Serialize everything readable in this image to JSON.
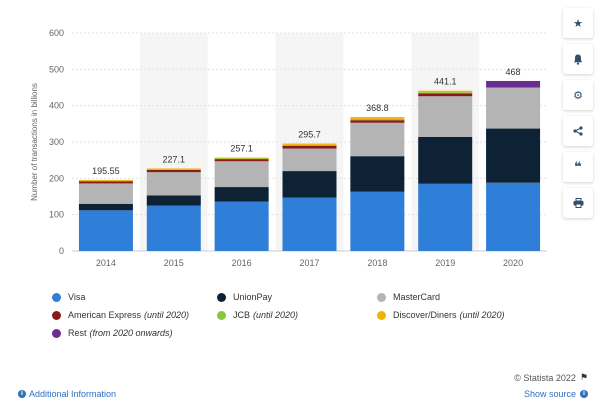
{
  "chart_data": {
    "type": "bar",
    "stacked": true,
    "ylabel": "Number of transactions in billions",
    "ylim": [
      0,
      600
    ],
    "yticks": [
      0,
      100,
      200,
      300,
      400,
      500,
      600
    ],
    "categories": [
      "2014",
      "2015",
      "2016",
      "2017",
      "2018",
      "2019",
      "2020"
    ],
    "totals": [
      "195.55",
      "227.1",
      "257.1",
      "295.7",
      "368.8",
      "441.1",
      "468"
    ],
    "grid": true,
    "legend_position": "bottom",
    "series": [
      {
        "name": "Visa",
        "color": "#2f7ed8",
        "values": [
          112,
          125,
          136,
          147,
          163,
          185,
          188
        ]
      },
      {
        "name": "UnionPay",
        "color": "#0e2235",
        "values": [
          18,
          28,
          40,
          73,
          98,
          129,
          149
        ]
      },
      {
        "name": "MasterCard",
        "color": "#b4b4b4",
        "values": [
          56,
          64,
          71,
          62,
          92,
          112,
          113
        ]
      },
      {
        "name": "American Express",
        "note": "(until 2020)",
        "color": "#8b1a1a",
        "values": [
          6,
          6,
          6,
          7,
          7,
          8,
          0
        ]
      },
      {
        "name": "JCB",
        "note": "(until 2020)",
        "color": "#8cc63f",
        "values": [
          1.5,
          2,
          2,
          3,
          3.5,
          3,
          0
        ]
      },
      {
        "name": "Discover/Diners",
        "note": "(until 2020)",
        "color": "#f0b400",
        "values": [
          2.05,
          2.1,
          2.1,
          3.7,
          5.3,
          4.1,
          0
        ]
      },
      {
        "name": "Rest",
        "note": "(from 2020 onwards)",
        "color": "#6c2d91",
        "values": [
          0,
          0,
          0,
          0,
          0,
          0,
          18
        ]
      }
    ]
  },
  "footer": {
    "additional_info": "Additional Information",
    "copyright": "© Statista 2022",
    "show_source": "Show source"
  },
  "sidebar_icons": [
    "star-icon",
    "bell-icon",
    "gear-icon",
    "share-icon",
    "quote-icon",
    "print-icon"
  ]
}
